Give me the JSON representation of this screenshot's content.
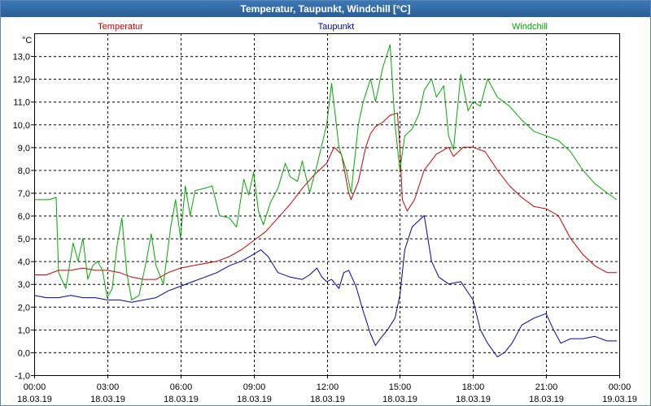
{
  "window": {
    "title": "Temperatur, Taupunkt, Windchill [°C]"
  },
  "chart_data": {
    "type": "line",
    "title": "Temperatur, Taupunkt, Windchill [°C]",
    "unit_label": "°C",
    "ylim": [
      -1.0,
      14.0
    ],
    "y_ticks": [
      "-1,0",
      "0,0",
      "1,0",
      "2,0",
      "3,0",
      "4,0",
      "5,0",
      "6,0",
      "7,0",
      "8,0",
      "9,0",
      "10,0",
      "11,0",
      "12,0",
      "13,0"
    ],
    "xlim_hours": [
      0,
      24
    ],
    "x_ticks": [
      {
        "time": "00:00",
        "date": "18.03.19"
      },
      {
        "time": "03:00",
        "date": "18.03.19"
      },
      {
        "time": "06:00",
        "date": "18.03.19"
      },
      {
        "time": "09:00",
        "date": "18.03.19"
      },
      {
        "time": "12:00",
        "date": "18.03.19"
      },
      {
        "time": "15:00",
        "date": "18.03.19"
      },
      {
        "time": "18:00",
        "date": "18.03.19"
      },
      {
        "time": "21:00",
        "date": "18.03.19"
      },
      {
        "time": "00:00",
        "date": "19.03.19"
      }
    ],
    "grid": true,
    "series": [
      {
        "name": "Temperatur",
        "color": "#cc0000",
        "points": [
          [
            0,
            3.4
          ],
          [
            0.5,
            3.4
          ],
          [
            1,
            3.6
          ],
          [
            1.5,
            3.6
          ],
          [
            2,
            3.7
          ],
          [
            2.5,
            3.6
          ],
          [
            3,
            3.6
          ],
          [
            3.5,
            3.5
          ],
          [
            4,
            3.3
          ],
          [
            4.5,
            3.2
          ],
          [
            5,
            3.2
          ],
          [
            5.5,
            3.5
          ],
          [
            6,
            3.7
          ],
          [
            6.5,
            3.8
          ],
          [
            7,
            3.9
          ],
          [
            7.5,
            4.0
          ],
          [
            8,
            4.2
          ],
          [
            8.5,
            4.5
          ],
          [
            9,
            4.9
          ],
          [
            9.5,
            5.3
          ],
          [
            10,
            5.9
          ],
          [
            10.5,
            6.5
          ],
          [
            11,
            7.2
          ],
          [
            11.5,
            7.8
          ],
          [
            12,
            8.3
          ],
          [
            12.3,
            9.0
          ],
          [
            12.6,
            8.7
          ],
          [
            12.9,
            7.0
          ],
          [
            13.0,
            6.7
          ],
          [
            13.3,
            7.5
          ],
          [
            13.6,
            9.0
          ],
          [
            13.8,
            9.6
          ],
          [
            14.0,
            9.9
          ],
          [
            14.3,
            10.1
          ],
          [
            14.6,
            10.4
          ],
          [
            14.9,
            10.5
          ],
          [
            15.0,
            9.0
          ],
          [
            15.1,
            6.7
          ],
          [
            15.3,
            6.2
          ],
          [
            15.6,
            6.7
          ],
          [
            16,
            8.0
          ],
          [
            16.5,
            8.7
          ],
          [
            17,
            9.0
          ],
          [
            17.2,
            8.6
          ],
          [
            17.4,
            8.8
          ],
          [
            17.6,
            9.0
          ],
          [
            18,
            9.0
          ],
          [
            18.5,
            8.8
          ],
          [
            19,
            8.0
          ],
          [
            19.5,
            7.3
          ],
          [
            20,
            6.8
          ],
          [
            20.5,
            6.4
          ],
          [
            21,
            6.3
          ],
          [
            21.5,
            6.0
          ],
          [
            22,
            5.0
          ],
          [
            22.5,
            4.3
          ],
          [
            23,
            3.8
          ],
          [
            23.5,
            3.5
          ],
          [
            23.9,
            3.5
          ]
        ]
      },
      {
        "name": "Taupunkt",
        "color": "#0000aa",
        "points": [
          [
            0,
            2.5
          ],
          [
            0.5,
            2.4
          ],
          [
            1,
            2.4
          ],
          [
            1.5,
            2.5
          ],
          [
            2,
            2.4
          ],
          [
            2.5,
            2.4
          ],
          [
            3,
            2.3
          ],
          [
            3.5,
            2.3
          ],
          [
            4,
            2.2
          ],
          [
            4.5,
            2.3
          ],
          [
            5,
            2.4
          ],
          [
            5.5,
            2.7
          ],
          [
            6,
            2.9
          ],
          [
            6.5,
            3.1
          ],
          [
            7,
            3.3
          ],
          [
            7.5,
            3.5
          ],
          [
            8,
            3.8
          ],
          [
            8.5,
            4.0
          ],
          [
            9,
            4.3
          ],
          [
            9.3,
            4.5
          ],
          [
            9.6,
            4.2
          ],
          [
            10,
            3.5
          ],
          [
            10.5,
            3.3
          ],
          [
            11,
            3.2
          ],
          [
            11.3,
            3.4
          ],
          [
            11.6,
            3.7
          ],
          [
            11.8,
            3.3
          ],
          [
            12,
            3.1
          ],
          [
            12.2,
            3.2
          ],
          [
            12.5,
            2.8
          ],
          [
            12.7,
            3.5
          ],
          [
            12.9,
            3.6
          ],
          [
            13.2,
            2.9
          ],
          [
            13.5,
            1.8
          ],
          [
            13.8,
            0.8
          ],
          [
            14.0,
            0.3
          ],
          [
            14.2,
            0.6
          ],
          [
            14.5,
            1.0
          ],
          [
            14.8,
            1.5
          ],
          [
            15.0,
            2.5
          ],
          [
            15.2,
            4.5
          ],
          [
            15.5,
            5.5
          ],
          [
            15.8,
            5.8
          ],
          [
            16.0,
            6.0
          ],
          [
            16.3,
            4.0
          ],
          [
            16.6,
            3.3
          ],
          [
            17,
            3.0
          ],
          [
            17.5,
            3.1
          ],
          [
            18,
            2.3
          ],
          [
            18.3,
            1.0
          ],
          [
            18.6,
            0.4
          ],
          [
            19,
            -0.2
          ],
          [
            19.3,
            0.0
          ],
          [
            19.6,
            0.4
          ],
          [
            20,
            1.2
          ],
          [
            20.5,
            1.5
          ],
          [
            21,
            1.7
          ],
          [
            21.3,
            1.0
          ],
          [
            21.6,
            0.4
          ],
          [
            22,
            0.6
          ],
          [
            22.5,
            0.6
          ],
          [
            23,
            0.7
          ],
          [
            23.5,
            0.5
          ],
          [
            23.9,
            0.5
          ]
        ]
      },
      {
        "name": "Windchill",
        "color": "#00aa00",
        "points": [
          [
            0,
            6.7
          ],
          [
            0.6,
            6.7
          ],
          [
            0.9,
            6.8
          ],
          [
            1.0,
            3.5
          ],
          [
            1.3,
            2.8
          ],
          [
            1.6,
            4.8
          ],
          [
            1.8,
            4.0
          ],
          [
            2.0,
            5.0
          ],
          [
            2.2,
            3.2
          ],
          [
            2.4,
            3.8
          ],
          [
            2.6,
            4.0
          ],
          [
            2.8,
            3.6
          ],
          [
            3.0,
            2.4
          ],
          [
            3.2,
            2.8
          ],
          [
            3.4,
            4.7
          ],
          [
            3.6,
            5.9
          ],
          [
            3.8,
            3.5
          ],
          [
            4.0,
            2.3
          ],
          [
            4.3,
            2.5
          ],
          [
            4.6,
            4.0
          ],
          [
            4.8,
            5.2
          ],
          [
            5.0,
            3.8
          ],
          [
            5.3,
            3.0
          ],
          [
            5.6,
            5.5
          ],
          [
            5.8,
            6.7
          ],
          [
            6.0,
            5.0
          ],
          [
            6.2,
            7.3
          ],
          [
            6.4,
            6.0
          ],
          [
            6.6,
            7.1
          ],
          [
            7.0,
            7.2
          ],
          [
            7.3,
            7.3
          ],
          [
            7.6,
            6.0
          ],
          [
            8.0,
            5.9
          ],
          [
            8.3,
            5.5
          ],
          [
            8.6,
            7.6
          ],
          [
            8.8,
            6.9
          ],
          [
            9.0,
            7.9
          ],
          [
            9.2,
            6.2
          ],
          [
            9.4,
            5.6
          ],
          [
            9.7,
            6.6
          ],
          [
            10.0,
            7.2
          ],
          [
            10.3,
            8.3
          ],
          [
            10.5,
            7.7
          ],
          [
            10.8,
            7.5
          ],
          [
            11.0,
            8.4
          ],
          [
            11.3,
            7.0
          ],
          [
            11.6,
            8.2
          ],
          [
            12.0,
            10.0
          ],
          [
            12.2,
            11.8
          ],
          [
            12.5,
            9.0
          ],
          [
            12.8,
            8.0
          ],
          [
            13.0,
            7.0
          ],
          [
            13.3,
            10.0
          ],
          [
            13.5,
            11.0
          ],
          [
            13.8,
            12.0
          ],
          [
            14.0,
            11.0
          ],
          [
            14.3,
            12.5
          ],
          [
            14.6,
            13.5
          ],
          [
            14.8,
            10.0
          ],
          [
            15.0,
            8.0
          ],
          [
            15.2,
            9.5
          ],
          [
            15.5,
            9.8
          ],
          [
            15.8,
            10.5
          ],
          [
            16.0,
            11.5
          ],
          [
            16.3,
            12.0
          ],
          [
            16.5,
            11.2
          ],
          [
            16.8,
            11.7
          ],
          [
            17.0,
            9.5
          ],
          [
            17.2,
            8.9
          ],
          [
            17.5,
            12.2
          ],
          [
            17.8,
            10.6
          ],
          [
            18.0,
            11.0
          ],
          [
            18.3,
            10.8
          ],
          [
            18.6,
            12.0
          ],
          [
            19.0,
            11.2
          ],
          [
            19.5,
            10.8
          ],
          [
            20.0,
            10.2
          ],
          [
            20.5,
            9.7
          ],
          [
            21.0,
            9.5
          ],
          [
            21.5,
            9.3
          ],
          [
            22.0,
            8.8
          ],
          [
            22.5,
            8.0
          ],
          [
            23.0,
            7.4
          ],
          [
            23.5,
            7.0
          ],
          [
            23.9,
            6.7
          ]
        ]
      }
    ]
  }
}
